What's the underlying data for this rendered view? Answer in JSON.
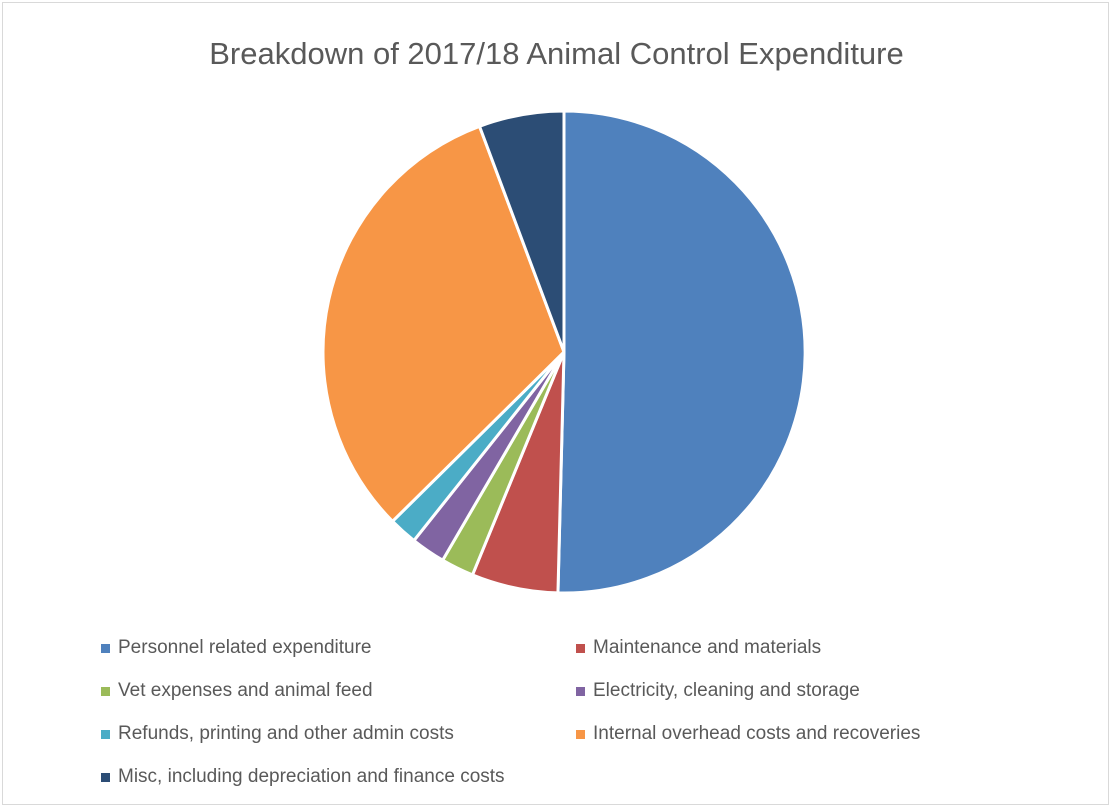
{
  "chart_data": {
    "type": "pie",
    "title": "Breakdown of 2017/18 Animal Control Expenditure",
    "categories": [
      "Personnel related expenditure",
      "Maintenance and materials",
      "Vet expenses and animal feed",
      "Electricity, cleaning and storage",
      "Refunds, printing and other admin costs",
      "Internal overhead costs and recoveries",
      "Misc, including depreciation and finance costs"
    ],
    "values": [
      50.4,
      5.8,
      2.2,
      2.3,
      1.9,
      31.7,
      5.7
    ],
    "colors": [
      "#4f81bd",
      "#c0504d",
      "#9bbb59",
      "#8064a2",
      "#4bacc6",
      "#f79646",
      "#2c4d75"
    ],
    "legend_position": "bottom"
  }
}
